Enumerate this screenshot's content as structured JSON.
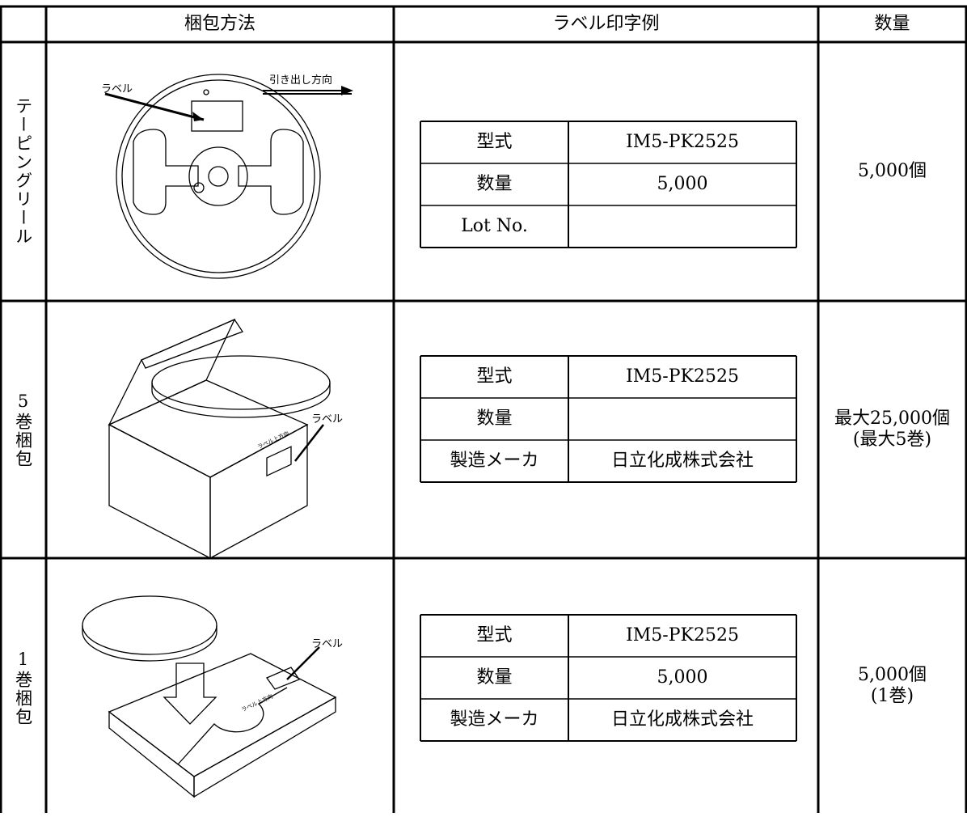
{
  "table": {
    "header": [
      "梱包方法",
      "ラベル印字例",
      "数量"
    ],
    "rows": [
      {
        "label": "テーピングリール",
        "illustration_labels": [
          "ラベル",
          "引き出し方向"
        ],
        "label_table": [
          [
            "型式",
            "IM5-PK2525"
          ],
          [
            "数量",
            "5,000"
          ],
          [
            "Lot No.",
            null
          ]
        ],
        "quantity": [
          "5,000個"
        ]
      },
      {
        "label": "5巻梱包",
        "illustration_labels": [
          "ラベル",
          "ラベル上方向"
        ],
        "label_table": [
          [
            "型式",
            "IM5-PK2525"
          ],
          [
            "数量",
            null
          ],
          [
            "製造メーカ",
            "日立化成株式会社"
          ]
        ],
        "quantity": [
          "最大25,000個",
          "(最大5巻)"
        ]
      },
      {
        "label": "1巻梱包",
        "illustration_labels": [
          "ラベル",
          "ラベル上方向"
        ],
        "label_table": [
          [
            "型式",
            "IM5-PK2525"
          ],
          [
            "数量",
            "5,000"
          ],
          [
            "製造メーカ",
            "日立化成株式会社"
          ]
        ],
        "quantity": [
          "5,000個",
          "(1巻)"
        ]
      }
    ]
  }
}
